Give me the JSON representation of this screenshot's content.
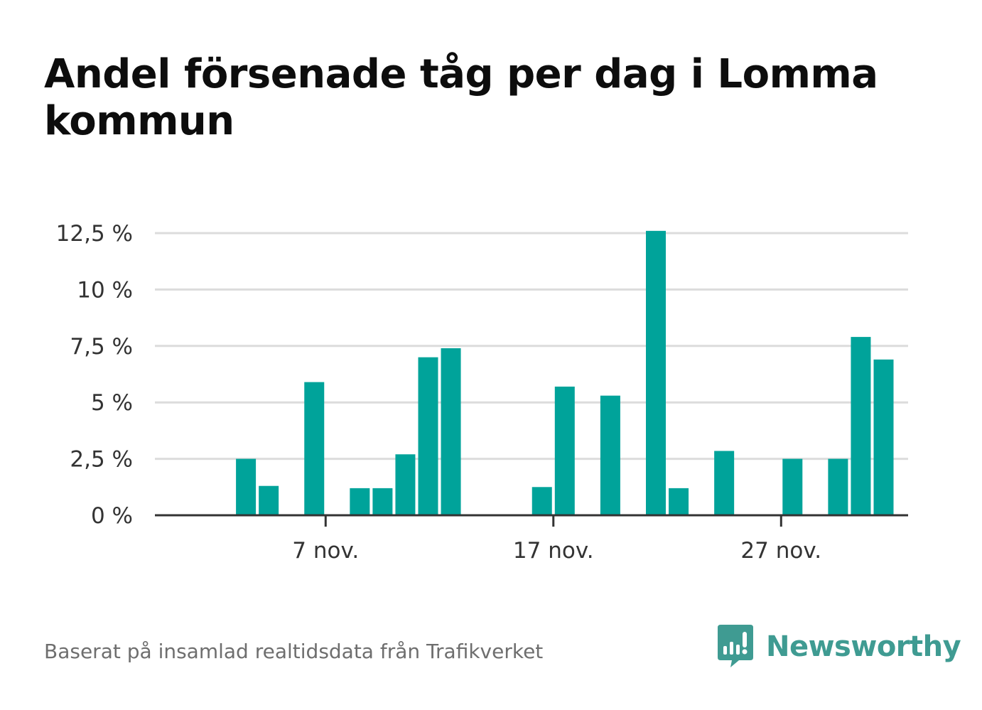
{
  "title": "Andel försenade tåg per dag i Lomma kommun",
  "source": "Baserat på insamlad realtidsdata från Trafikverket",
  "brand": {
    "name": "Newsworthy"
  },
  "colors": {
    "bar": "#00a39a",
    "grid": "#dcdcdc",
    "axis": "#333333",
    "text": "#333333",
    "brand": "#3f9b92"
  },
  "chart_data": {
    "type": "bar",
    "title": "Andel försenade tåg per dag i Lomma kommun",
    "xlabel": "",
    "ylabel": "",
    "ylim": [
      0,
      12.5
    ],
    "yticks": [
      {
        "value": 0,
        "label": "0 %"
      },
      {
        "value": 2.5,
        "label": "2,5 %"
      },
      {
        "value": 5,
        "label": "5 %"
      },
      {
        "value": 7.5,
        "label": "7,5 %"
      },
      {
        "value": 10,
        "label": "10 %"
      },
      {
        "value": 12.5,
        "label": "12,5 %"
      }
    ],
    "xticks": [
      {
        "day": 7,
        "label": "7 nov."
      },
      {
        "day": 17,
        "label": "17 nov."
      },
      {
        "day": 27,
        "label": "27 nov."
      }
    ],
    "days": [
      1,
      2,
      3,
      4,
      5,
      6,
      7,
      8,
      9,
      10,
      11,
      12,
      13,
      14,
      15,
      16,
      17,
      18,
      19,
      20,
      21,
      22,
      23,
      24,
      25,
      26,
      27,
      28,
      29,
      30,
      31,
      32,
      33
    ],
    "values": [
      0,
      0,
      2.5,
      1.3,
      0,
      5.9,
      0,
      1.2,
      1.2,
      2.7,
      7.0,
      7.4,
      0,
      0,
      0,
      1.25,
      5.7,
      0,
      5.3,
      0,
      12.6,
      1.2,
      0,
      2.85,
      0,
      0,
      2.5,
      0,
      2.5,
      7.9,
      6.9,
      0,
      0
    ],
    "grid": true,
    "legend": "none"
  }
}
